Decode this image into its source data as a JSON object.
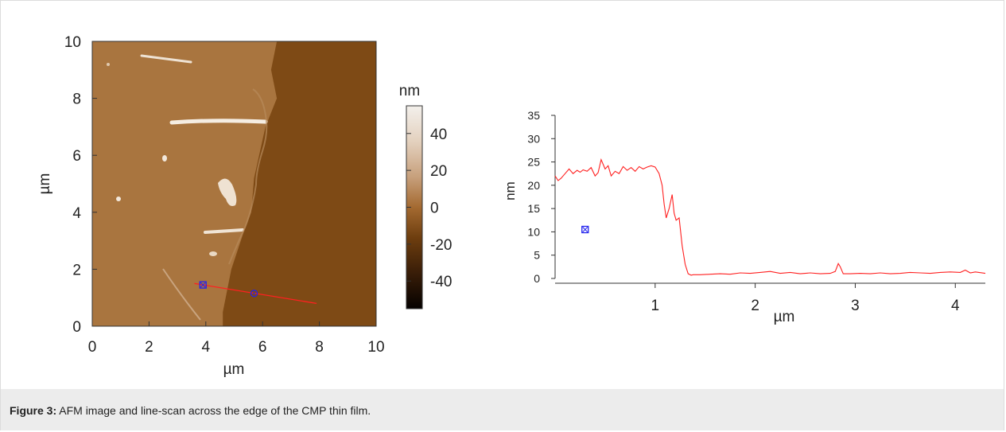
{
  "caption": {
    "label": "Figure 3:",
    "text": "AFM image and line-scan across the edge of the CMP thin film."
  },
  "colors": {
    "film": "#a9753f",
    "substrate": "#7e4a15",
    "profile_line": "#ff2020",
    "marker": "#2222ee",
    "caption_bg": "#ececec"
  },
  "chart_data": [
    {
      "type": "heatmap",
      "title": "",
      "xlabel": "µm",
      "ylabel": "µm",
      "xlim": [
        0,
        10
      ],
      "ylim": [
        0,
        10
      ],
      "x_ticks": [
        "0",
        "2",
        "4",
        "6",
        "8",
        "10"
      ],
      "y_ticks": [
        "0",
        "2",
        "4",
        "6",
        "8",
        "10"
      ],
      "film_edge": {
        "x_at_y": [
          [
            6.5,
            10.0
          ],
          [
            6.3,
            9.0
          ],
          [
            6.5,
            8.0
          ],
          [
            6.1,
            7.0
          ],
          [
            5.7,
            5.2
          ],
          [
            5.6,
            4.0
          ],
          [
            5.3,
            3.2
          ],
          [
            4.9,
            2.0
          ],
          [
            4.6,
            0.5
          ],
          [
            4.6,
            0.0
          ]
        ]
      },
      "colorbar": {
        "label": "nm",
        "range": [
          -55,
          55
        ],
        "ticks": [
          "40",
          "20",
          "0",
          "-20",
          "-40"
        ],
        "tick_values": [
          40,
          20,
          0,
          -20,
          -40
        ]
      },
      "line_scan": {
        "start": [
          3.6,
          1.5
        ],
        "end": [
          7.9,
          0.8
        ]
      },
      "markers": [
        {
          "shape": "square",
          "x": 3.9,
          "y": 1.45
        },
        {
          "shape": "circle",
          "x": 5.7,
          "y": 1.15
        }
      ]
    },
    {
      "type": "line",
      "title": "",
      "xlabel": "µm",
      "ylabel": "nm",
      "xlim": [
        0,
        4.3
      ],
      "ylim": [
        0,
        35
      ],
      "x_ticks": [
        "1",
        "2",
        "3",
        "4"
      ],
      "y_ticks": [
        "0",
        "5",
        "10",
        "15",
        "20",
        "25",
        "30",
        "35"
      ],
      "series": [
        {
          "x": [
            0.0,
            0.03,
            0.06,
            0.1,
            0.14,
            0.18,
            0.22,
            0.25,
            0.28,
            0.32,
            0.36,
            0.4,
            0.43,
            0.46,
            0.5,
            0.53,
            0.56,
            0.6,
            0.64,
            0.68,
            0.72,
            0.76,
            0.8,
            0.84,
            0.88,
            0.92,
            0.96,
            1.0,
            1.04,
            1.07,
            1.09,
            1.11,
            1.14,
            1.17,
            1.19,
            1.21,
            1.24,
            1.27,
            1.3,
            1.33,
            1.36,
            1.38,
            1.45,
            1.55,
            1.65,
            1.75,
            1.85,
            1.95,
            2.05,
            2.15,
            2.25,
            2.35,
            2.45,
            2.55,
            2.65,
            2.75,
            2.8,
            2.83,
            2.85,
            2.88,
            2.95,
            3.05,
            3.15,
            3.25,
            3.35,
            3.45,
            3.55,
            3.65,
            3.75,
            3.85,
            3.95,
            4.05,
            4.1,
            4.15,
            4.2,
            4.3
          ],
          "y": [
            22,
            21,
            21.5,
            22.5,
            23.5,
            22.5,
            23.2,
            22.8,
            23.3,
            23,
            23.8,
            22,
            22.7,
            25.5,
            23.5,
            24.2,
            22,
            23,
            22.5,
            24,
            23.2,
            23.8,
            23,
            24,
            23.5,
            23.9,
            24.2,
            23.9,
            22.5,
            20,
            16,
            13,
            15,
            18,
            14,
            12.5,
            13,
            7,
            3,
            1,
            0.7,
            0.8,
            0.8,
            0.9,
            1,
            0.9,
            1.2,
            1.1,
            1.3,
            1.5,
            1.1,
            1.3,
            1,
            1.2,
            1,
            1.1,
            1.5,
            3.2,
            2.5,
            1,
            1,
            1.1,
            1,
            1.2,
            1,
            1.1,
            1.3,
            1.2,
            1.1,
            1.3,
            1.4,
            1.3,
            1.8,
            1.2,
            1.4,
            1.1
          ]
        }
      ],
      "markers": [
        {
          "shape": "square",
          "x": 0.3,
          "y": 10.5
        }
      ]
    }
  ]
}
